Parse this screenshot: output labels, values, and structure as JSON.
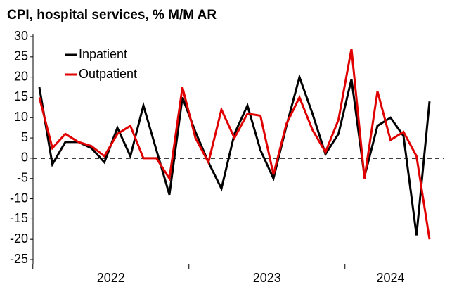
{
  "chart_data": {
    "type": "line",
    "title": "CPI, hospital services, % M/M AR",
    "categories": [
      null,
      null,
      null,
      null,
      null,
      null,
      null,
      null,
      null,
      null,
      null,
      null,
      null,
      null,
      null,
      null,
      null,
      null,
      null,
      null,
      null,
      null,
      null,
      null,
      null,
      null,
      null,
      null,
      null,
      null,
      null
    ],
    "x_groups": [
      "2022",
      "2023",
      "2024"
    ],
    "series": [
      {
        "name": "Inpatient",
        "color": "#000000",
        "values": [
          17.5,
          -1.5,
          4,
          4,
          2.5,
          -1,
          7.5,
          0.5,
          13,
          2,
          -9,
          15,
          6.5,
          -1,
          -7.5,
          6,
          13,
          2,
          -5,
          8,
          20,
          11,
          1,
          6,
          19.5,
          -4.5,
          8,
          10,
          5.5,
          -19,
          14
        ]
      },
      {
        "name": "Outpatient",
        "color": "#e00000",
        "values": [
          15,
          2.5,
          6,
          4,
          3,
          0.5,
          6,
          8,
          0,
          0,
          -5,
          17.5,
          5,
          -1,
          12,
          5,
          11,
          10.5,
          -4,
          8.5,
          15,
          7,
          1.5,
          9.5,
          27,
          -5,
          16.5,
          4.5,
          6.5,
          0.5,
          -20
        ]
      }
    ],
    "ylim": [
      -25,
      30
    ],
    "yticks": [
      -25,
      -20,
      -15,
      -10,
      -5,
      0,
      5,
      10,
      15,
      20,
      25,
      30
    ],
    "legend": "upper-left"
  }
}
